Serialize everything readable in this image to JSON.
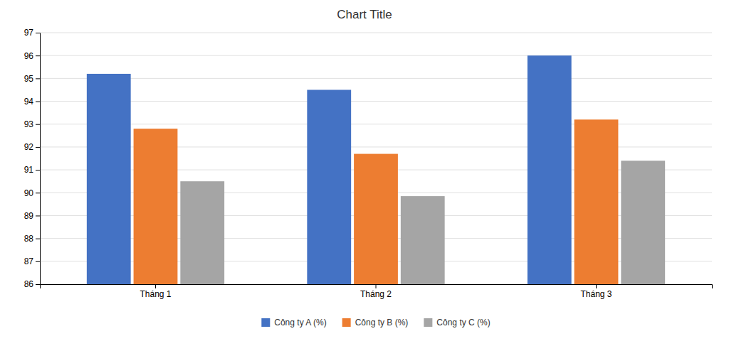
{
  "chart_data": {
    "type": "bar",
    "title": "Chart Title",
    "categories": [
      "Tháng 1",
      "Tháng 2",
      "Tháng 3"
    ],
    "series": [
      {
        "name": "Công ty A (%)",
        "color": "#4472C4",
        "values": [
          95.2,
          94.5,
          96.0
        ]
      },
      {
        "name": "Công ty B (%)",
        "color": "#ED7D31",
        "values": [
          92.8,
          91.7,
          93.2
        ]
      },
      {
        "name": "Công ty C (%)",
        "color": "#A5A5A5",
        "values": [
          90.5,
          89.85,
          91.4
        ]
      }
    ],
    "ylim": [
      86,
      97
    ],
    "yticks": [
      86,
      87,
      88,
      89,
      90,
      91,
      92,
      93,
      94,
      95,
      96,
      97
    ],
    "grid": true,
    "legend": "bottom"
  }
}
